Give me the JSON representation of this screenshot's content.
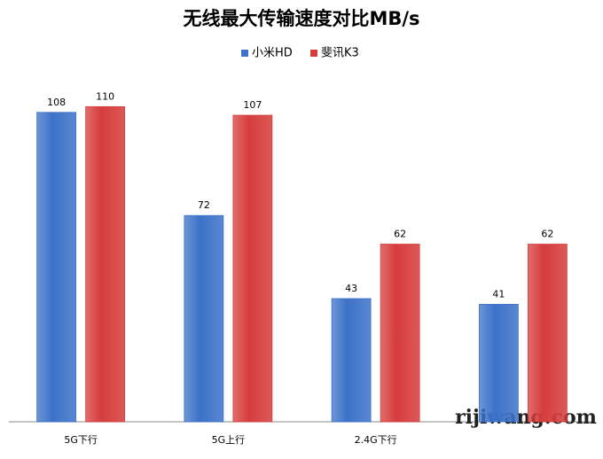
{
  "chart_data": {
    "type": "bar",
    "title": "无线最大传输速度对比MB/s",
    "categories": [
      "5G下行",
      "5G上行",
      "2.4G下行",
      null
    ],
    "series": [
      {
        "name": "小米HD",
        "color": "#3c72c8",
        "values": [
          108,
          72,
          43,
          41
        ]
      },
      {
        "name": "斐讯K3",
        "color": "#d63c3c",
        "values": [
          110,
          107,
          62,
          62
        ]
      }
    ],
    "ylim": [
      0,
      120
    ],
    "legend": "top",
    "watermark": "rijiwang.com"
  }
}
